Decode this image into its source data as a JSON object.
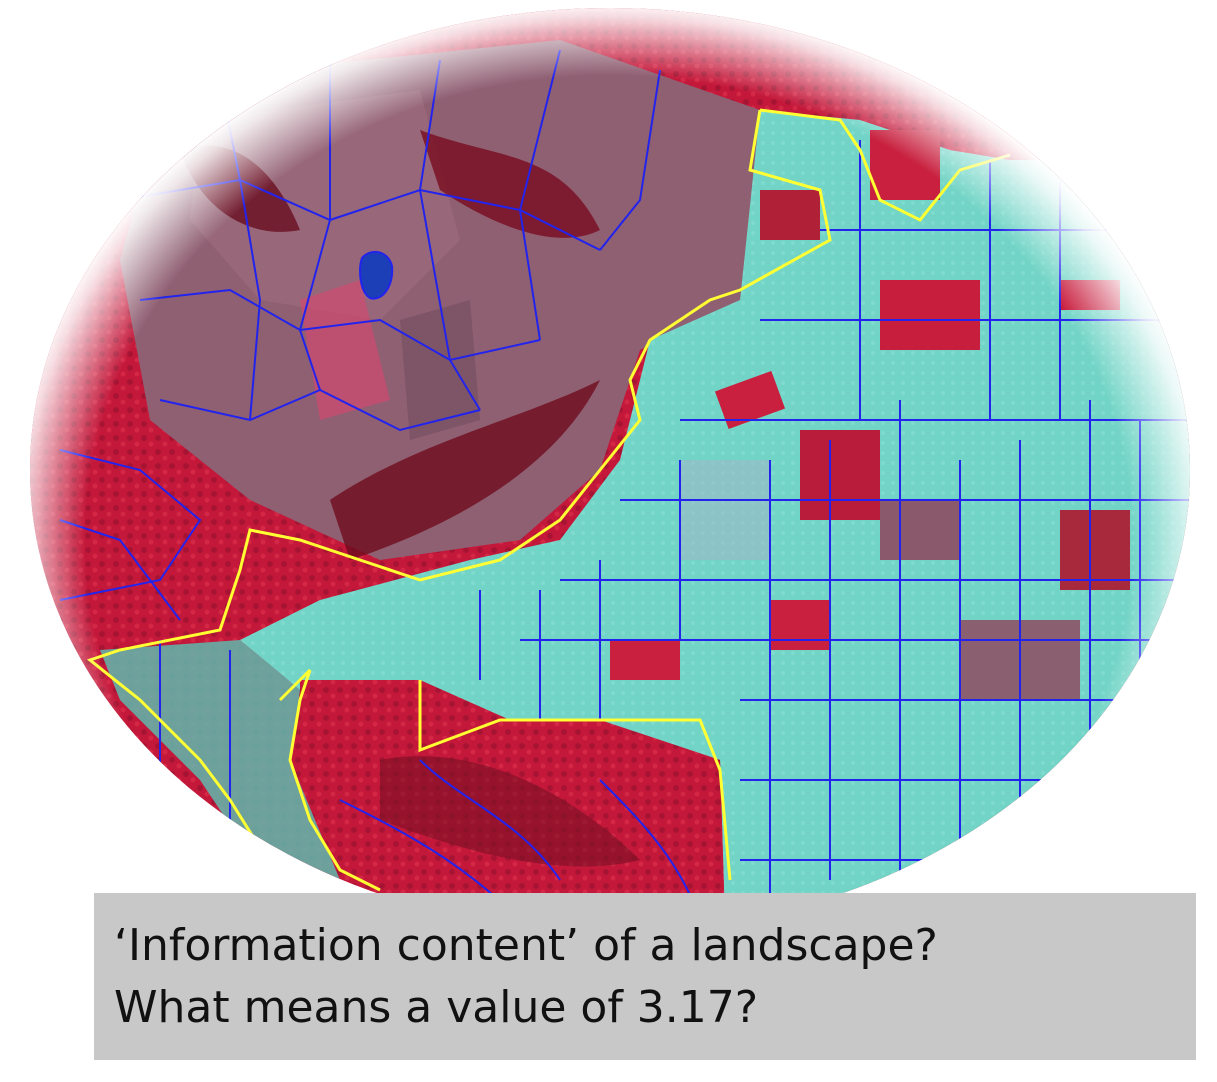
{
  "image": {
    "subject": "false-color satellite image with segmented field boundaries",
    "colors": {
      "vegetation_red": "#c4183a",
      "dark_forest": "#7a1024",
      "field_cyan": "#6fd3c4",
      "field_mauve": "#8a5a6c",
      "segment_line_blue": "#2323ee",
      "region_line_yellow": "#ffff33",
      "water_blue": "#1c3fb8",
      "vignette": "#ffffff"
    }
  },
  "caption": {
    "line1": "‘Information content’ of a landscape?",
    "line2": "What means a value of 3.17?",
    "background": "#c8c8c8"
  }
}
